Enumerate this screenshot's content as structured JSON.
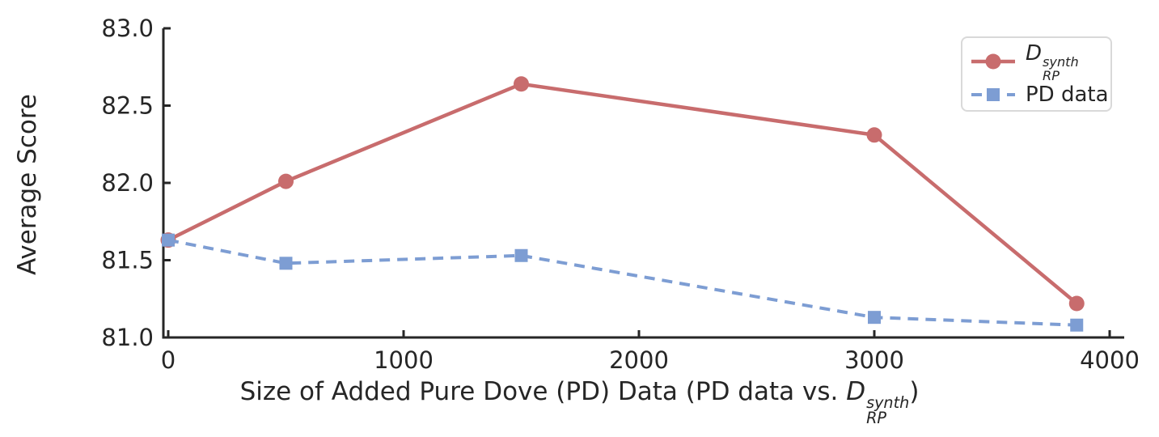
{
  "figure": {
    "ylabel": "Average Score",
    "xlabel_prefix": "Size of Added Pure Dove (PD) Data (PD data vs. ",
    "xlabel_math_base": "D",
    "xlabel_math_sup": "synth",
    "xlabel_math_sub": "RP",
    "xlabel_suffix": ")"
  },
  "legend": {
    "items": [
      {
        "math_base": "D",
        "sup": "synth",
        "sub": "RP",
        "sample": "solid-line-circle"
      },
      {
        "label": "PD data",
        "sample": "dashed-line-square"
      }
    ]
  },
  "chart_data": {
    "type": "line",
    "title": "",
    "xlabel": "Size of Added Pure Dove (PD) Data (PD data vs. D_RP^synth)",
    "ylabel": "Average Score",
    "x": [
      0,
      500,
      1500,
      3000,
      3860
    ],
    "series": [
      {
        "name": "D_RP^synth",
        "color": "#C86C6D",
        "marker": "circle",
        "line_style": "solid",
        "values": [
          81.63,
          82.01,
          82.64,
          82.31,
          81.22
        ]
      },
      {
        "name": "PD data",
        "color": "#7D9DD3",
        "marker": "square",
        "line_style": "dashed",
        "values": [
          81.63,
          81.48,
          81.53,
          81.13,
          81.08
        ]
      }
    ],
    "xticks": {
      "values": [
        0,
        1000,
        2000,
        3000,
        4000
      ],
      "labels": [
        "0",
        "1000",
        "2000",
        "3000",
        "4000"
      ]
    },
    "yticks": {
      "values": [
        81.0,
        81.5,
        82.0,
        82.5,
        83.0
      ],
      "labels": [
        "81.0",
        "81.5",
        "82.0",
        "82.5",
        "83.0"
      ]
    },
    "xlim": [
      0,
      4000
    ],
    "ylim": [
      81.0,
      83.0
    ],
    "grid": false,
    "legend_position": "upper right",
    "axis_color": "#262626",
    "text_color": "#262626",
    "background_color": "#ffffff"
  }
}
